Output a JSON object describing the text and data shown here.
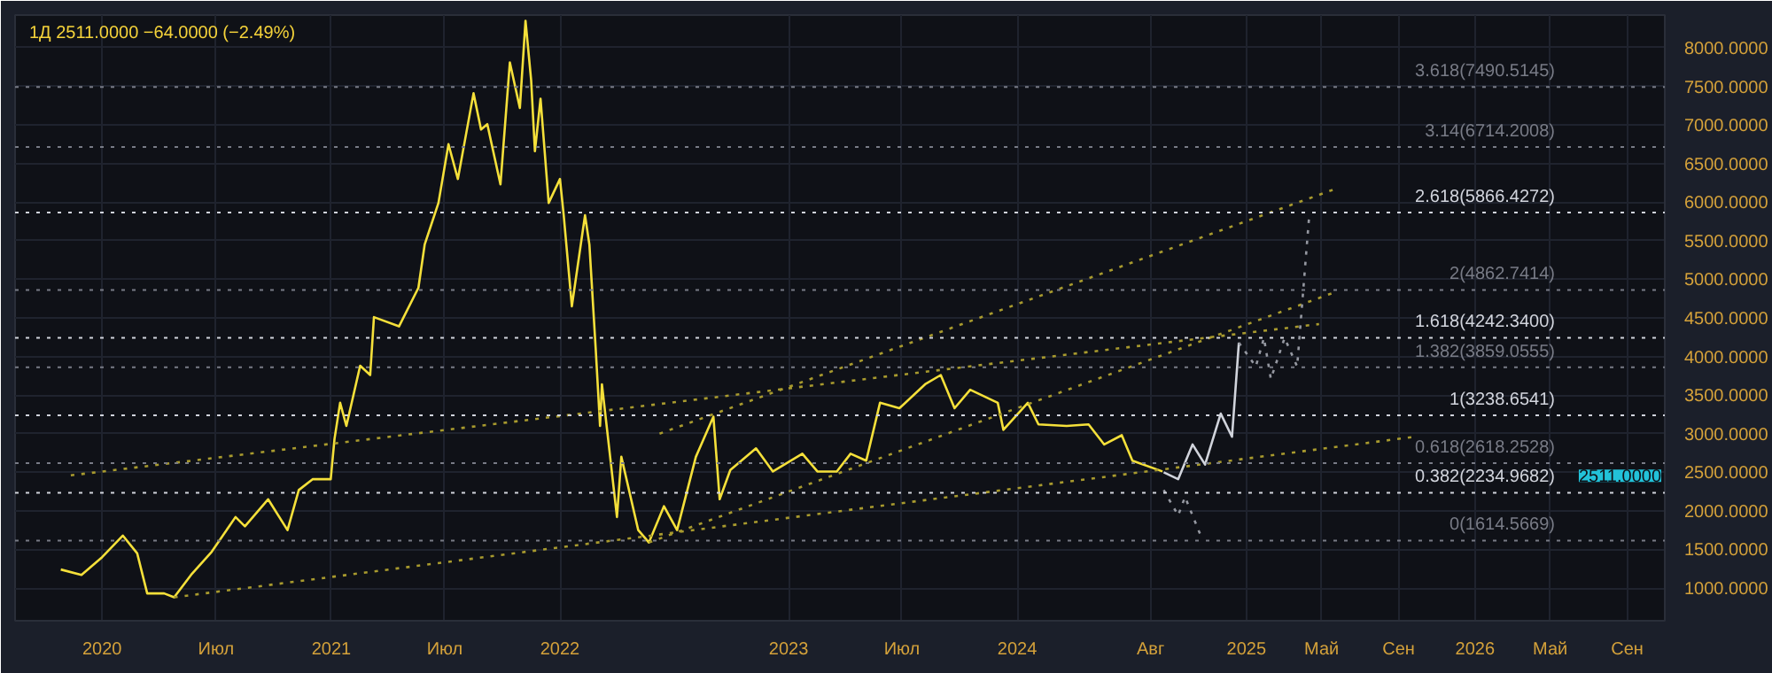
{
  "chart_data": {
    "type": "line",
    "title": "1Д  2511.0000  −64.0000 (−2.49%)",
    "xlim": [
      "2019-08-15",
      "2026-10-31"
    ],
    "xticks": [
      {
        "value": "2020-01-01",
        "label": "2020"
      },
      {
        "value": "2020-07-01",
        "label": "Июл"
      },
      {
        "value": "2021-01-01",
        "label": "2021"
      },
      {
        "value": "2021-07-01",
        "label": "Июл"
      },
      {
        "value": "2022-01-01",
        "label": "2022"
      },
      {
        "value": "2023-01-01",
        "label": "2023"
      },
      {
        "value": "2023-07-01",
        "label": "Июл"
      },
      {
        "value": "2024-01-01",
        "label": "2024"
      },
      {
        "value": "2024-08-01",
        "label": "Авг"
      },
      {
        "value": "2025-01-01",
        "label": "2025"
      },
      {
        "value": "2025-05-01",
        "label": "Май"
      },
      {
        "value": "2025-09-01",
        "label": "Сен"
      },
      {
        "value": "2026-01-01",
        "label": "2026"
      },
      {
        "value": "2026-05-01",
        "label": "Май"
      },
      {
        "value": "2026-09-01",
        "label": "Сен"
      }
    ],
    "ylim": [
      576,
      8424
    ],
    "yticks": [
      {
        "value": 1000,
        "label": "1000.0000"
      },
      {
        "value": 1500,
        "label": "1500.0000"
      },
      {
        "value": 2000,
        "label": "2000.0000"
      },
      {
        "value": 2500,
        "label": "2500.0000"
      },
      {
        "value": 3000,
        "label": "3000.0000"
      },
      {
        "value": 3500,
        "label": "3500.0000"
      },
      {
        "value": 4000,
        "label": "4000.0000"
      },
      {
        "value": 4500,
        "label": "4500.0000"
      },
      {
        "value": 5000,
        "label": "5000.0000"
      },
      {
        "value": 5500,
        "label": "5500.0000"
      },
      {
        "value": 6000,
        "label": "6000.0000"
      },
      {
        "value": 6500,
        "label": "6500.0000"
      },
      {
        "value": 7000,
        "label": "7000.0000"
      },
      {
        "value": 7500,
        "label": "7500.0000"
      },
      {
        "value": 8000,
        "label": "8000.0000"
      }
    ],
    "grid": true,
    "series": [
      {
        "color": "#f5e03a",
        "line_style": "solid",
        "x": [
          "2019-10-27",
          "2019-11-29",
          "2020-01-01",
          "2020-02-03",
          "2020-02-26",
          "2020-03-13",
          "2020-04-09",
          "2020-04-25",
          "2020-05-22",
          "2020-06-24",
          "2020-08-01",
          "2020-08-16",
          "2020-09-22",
          "2020-10-23",
          "2020-11-10",
          "2020-12-02",
          "2020-12-31",
          "2021-01-06",
          "2021-01-15",
          "2021-01-25",
          "2021-02-16",
          "2021-03-04",
          "2021-03-10",
          "2021-04-19",
          "2021-05-20",
          "2021-05-30",
          "2021-06-21",
          "2021-07-07",
          "2021-07-22",
          "2021-08-16",
          "2021-08-28",
          "2021-09-07",
          "2021-09-28",
          "2021-10-13",
          "2021-10-29",
          "2021-11-07",
          "2021-11-16",
          "2021-11-22",
          "2021-12-01",
          "2021-12-14",
          "2022-01-01",
          "2022-01-07",
          "2022-01-20",
          "2022-02-10",
          "2022-02-17",
          "2022-02-24",
          "2022-02-27",
          "2022-03-06",
          "2022-03-09",
          "2022-04-02",
          "2022-04-09",
          "2022-05-06",
          "2022-05-23",
          "2022-06-16",
          "2022-07-07",
          "2022-08-06",
          "2022-09-03",
          "2022-09-13",
          "2022-09-30",
          "2022-11-10",
          "2022-12-07",
          "2023-01-23",
          "2023-02-16",
          "2023-03-19",
          "2023-04-10",
          "2023-05-05",
          "2023-05-27",
          "2023-06-27",
          "2023-08-07",
          "2023-09-01",
          "2023-09-23",
          "2023-10-18",
          "2023-12-01",
          "2023-12-10",
          "2024-01-18",
          "2024-02-04",
          "2024-03-20",
          "2024-04-24",
          "2024-05-19",
          "2024-06-16",
          "2024-07-03",
          "2024-08-20"
        ],
        "values": [
          1240,
          1170,
          1400,
          1680,
          1450,
          930,
          930,
          880,
          1170,
          1470,
          1920,
          1800,
          2150,
          1750,
          2270,
          2410,
          2410,
          2930,
          3400,
          3100,
          3880,
          3760,
          4510,
          4390,
          4890,
          5450,
          5990,
          6750,
          6300,
          7410,
          6940,
          7010,
          6230,
          7810,
          7220,
          8350,
          7580,
          6660,
          7340,
          5990,
          6300,
          5830,
          4650,
          5830,
          5450,
          4510,
          4110,
          3100,
          3640,
          1920,
          2700,
          1750,
          1590,
          2060,
          1750,
          2700,
          3220,
          2150,
          2530,
          2810,
          2510,
          2740,
          2510,
          2510,
          2740,
          2650,
          3400,
          3330,
          3640,
          3760,
          3330,
          3570,
          3400,
          3050,
          3400,
          3120,
          3100,
          3120,
          2860,
          2980,
          2650,
          2511
        ]
      },
      {
        "color": "#a89a2e",
        "line_style": "dotted",
        "x": [
          "2019-11-12",
          "2025-04-27"
        ],
        "values": [
          2460,
          4420
        ]
      },
      {
        "color": "#a89a2e",
        "line_style": "dotted",
        "x": [
          "2020-04-25",
          "2025-09-27"
        ],
        "values": [
          880,
          2960
        ]
      },
      {
        "color": "#a89a2e",
        "line_style": "dotted",
        "x": [
          "2022-05-23",
          "2025-05-18"
        ],
        "values": [
          1590,
          4820
        ]
      },
      {
        "color": "#a89a2e",
        "line_style": "dotted",
        "x": [
          "2022-06-09",
          "2025-05-26"
        ],
        "values": [
          3000,
          6180
        ]
      },
      {
        "color": "#d1d4dc",
        "line_style": "solid",
        "x": [
          "2024-08-22",
          "2024-09-14",
          "2024-10-07",
          "2024-10-27",
          "2024-11-21",
          "2024-12-09",
          "2024-12-20"
        ],
        "values": [
          2500,
          2410,
          2860,
          2600,
          3260,
          2960,
          4180
        ]
      },
      {
        "color": "#9598a1",
        "line_style": "dotted",
        "x": [
          "2024-12-20",
          "2025-01-16",
          "2025-01-29",
          "2025-02-09",
          "2025-03-03",
          "2025-03-23",
          "2025-04-11"
        ],
        "values": [
          4180,
          3870,
          4240,
          3710,
          4240,
          3870,
          5800
        ]
      },
      {
        "color": "#9598a1",
        "line_style": "dotted",
        "x": [
          "2024-08-22",
          "2024-09-14",
          "2024-09-25",
          "2024-10-20"
        ],
        "values": [
          2270,
          1940,
          2180,
          1680
        ]
      }
    ],
    "ref_lines": [
      {
        "axis": "y",
        "value": 7490.5145,
        "label": "3.618(7490.5145)",
        "color": "#787b86",
        "line_style": "dotted"
      },
      {
        "axis": "y",
        "value": 6714.2008,
        "label": "3.14(6714.2008)",
        "color": "#787b86",
        "line_style": "dotted"
      },
      {
        "axis": "y",
        "value": 5866.4272,
        "label": "2.618(5866.4272)",
        "color": "#d1d4dc",
        "line_style": "dotted"
      },
      {
        "axis": "y",
        "value": 4862.7414,
        "label": "2(4862.7414)",
        "color": "#787b86",
        "line_style": "dotted"
      },
      {
        "axis": "y",
        "value": 4242.34,
        "label": "1.618(4242.3400)",
        "color": "#d1d4dc",
        "line_style": "dotted"
      },
      {
        "axis": "y",
        "value": 3859.0555,
        "label": "1.382(3859.0555)",
        "color": "#787b86",
        "line_style": "dotted"
      },
      {
        "axis": "y",
        "value": 3238.6541,
        "label": "1(3238.6541)",
        "color": "#d1d4dc",
        "line_style": "dotted"
      },
      {
        "axis": "y",
        "value": 2618.2528,
        "label": "0.618(2618.2528)",
        "color": "#787b86",
        "line_style": "dotted"
      },
      {
        "axis": "y",
        "value": 2234.9682,
        "label": "0.382(2234.9682)",
        "color": "#d1d4dc",
        "line_style": "dotted"
      },
      {
        "axis": "y",
        "value": 1614.5669,
        "label": "0(1614.5669)",
        "color": "#787b86",
        "line_style": "dotted"
      }
    ],
    "annotations": [
      {
        "text": "2511.0000",
        "y": 2511
      }
    ]
  }
}
